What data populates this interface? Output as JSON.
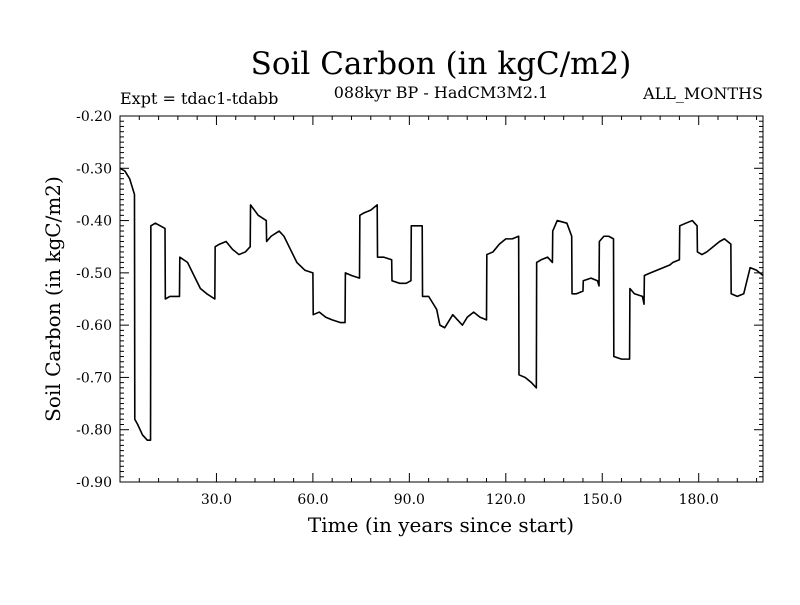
{
  "chart_data": {
    "type": "line",
    "title": "Soil Carbon (in kgC/m2)",
    "subtitle_left": "Expt = tdac1-tdabb",
    "subtitle_center": "088kyr BP - HadCM3M2.1",
    "subtitle_right": "ALL_MONTHS",
    "xlabel": "Time (in years since start)",
    "ylabel": "Soil Carbon (in kgC/m2)",
    "xlim": [
      0,
      200
    ],
    "ylim": [
      -0.9,
      -0.2
    ],
    "xticks": [
      30,
      60,
      90,
      120,
      150,
      180
    ],
    "xtick_labels": [
      "30.0",
      "60.0",
      "90.0",
      "120.0",
      "150.0",
      "180.0"
    ],
    "yticks": [
      -0.2,
      -0.3,
      -0.4,
      -0.5,
      -0.6,
      -0.7,
      -0.8,
      -0.9
    ],
    "ytick_labels": [
      "-0.20",
      "-0.30",
      "-0.40",
      "-0.50",
      "-0.60",
      "-0.70",
      "-0.80",
      "-0.90"
    ],
    "series": [
      {
        "name": "Soil Carbon",
        "x": [
          0,
          1.5,
          3,
          4.5,
          4.6,
          5.5,
          7,
          8.5,
          9.5,
          9.6,
          11,
          12.5,
          14,
          14.1,
          15.5,
          17,
          18.5,
          18.6,
          21,
          23,
          25,
          27,
          29.5,
          29.6,
          31,
          33,
          35,
          36,
          37,
          39,
          40.5,
          40.6,
          43,
          45.5,
          45.6,
          47,
          49.5,
          51,
          53,
          55,
          57.5,
          60,
          60.1,
          62,
          64,
          66,
          68.5,
          70,
          70.1,
          72,
          74.5,
          74.6,
          76,
          78,
          80,
          80.1,
          82,
          84.5,
          84.6,
          87,
          89,
          90.5,
          90.6,
          92,
          94,
          94.1,
          96,
          98.5,
          99.5,
          101,
          102,
          103.5,
          105,
          106.5,
          108,
          110,
          112,
          114,
          114.1,
          116,
          118,
          120,
          122,
          124,
          124.1,
          126,
          128,
          129.5,
          129.6,
          131,
          133,
          134.5,
          134.6,
          136,
          139,
          140.5,
          140.6,
          142,
          144,
          144.1,
          146.5,
          148.5,
          149,
          149.1,
          150.5,
          152,
          153.5,
          153.6,
          156,
          158.5,
          158.6,
          160,
          162.5,
          163,
          163.1,
          165,
          167,
          169,
          171,
          172,
          174,
          174.1,
          176,
          178,
          179.5,
          179.6,
          181,
          182.5,
          184.5,
          186.5,
          188,
          190,
          190.1,
          192,
          194,
          196,
          198,
          200
        ],
        "y": [
          -0.3,
          -0.305,
          -0.32,
          -0.35,
          -0.78,
          -0.79,
          -0.81,
          -0.82,
          -0.82,
          -0.41,
          -0.405,
          -0.41,
          -0.415,
          -0.55,
          -0.545,
          -0.545,
          -0.545,
          -0.47,
          -0.48,
          -0.505,
          -0.53,
          -0.54,
          -0.55,
          -0.45,
          -0.445,
          -0.44,
          -0.455,
          -0.46,
          -0.465,
          -0.46,
          -0.45,
          -0.37,
          -0.39,
          -0.4,
          -0.44,
          -0.43,
          -0.42,
          -0.43,
          -0.455,
          -0.48,
          -0.495,
          -0.5,
          -0.58,
          -0.575,
          -0.585,
          -0.59,
          -0.595,
          -0.595,
          -0.5,
          -0.505,
          -0.51,
          -0.39,
          -0.385,
          -0.38,
          -0.37,
          -0.47,
          -0.47,
          -0.475,
          -0.515,
          -0.52,
          -0.52,
          -0.515,
          -0.41,
          -0.41,
          -0.41,
          -0.545,
          -0.545,
          -0.57,
          -0.6,
          -0.605,
          -0.595,
          -0.58,
          -0.59,
          -0.6,
          -0.585,
          -0.575,
          -0.585,
          -0.59,
          -0.465,
          -0.46,
          -0.445,
          -0.435,
          -0.435,
          -0.43,
          -0.695,
          -0.7,
          -0.71,
          -0.72,
          -0.48,
          -0.475,
          -0.47,
          -0.48,
          -0.42,
          -0.4,
          -0.405,
          -0.43,
          -0.54,
          -0.54,
          -0.535,
          -0.515,
          -0.51,
          -0.515,
          -0.525,
          -0.44,
          -0.43,
          -0.43,
          -0.435,
          -0.66,
          -0.665,
          -0.665,
          -0.53,
          -0.54,
          -0.545,
          -0.56,
          -0.505,
          -0.5,
          -0.495,
          -0.49,
          -0.485,
          -0.48,
          -0.475,
          -0.41,
          -0.405,
          -0.4,
          -0.41,
          -0.46,
          -0.465,
          -0.46,
          -0.45,
          -0.44,
          -0.435,
          -0.445,
          -0.54,
          -0.545,
          -0.54,
          -0.49,
          -0.495,
          -0.505
        ]
      }
    ]
  }
}
